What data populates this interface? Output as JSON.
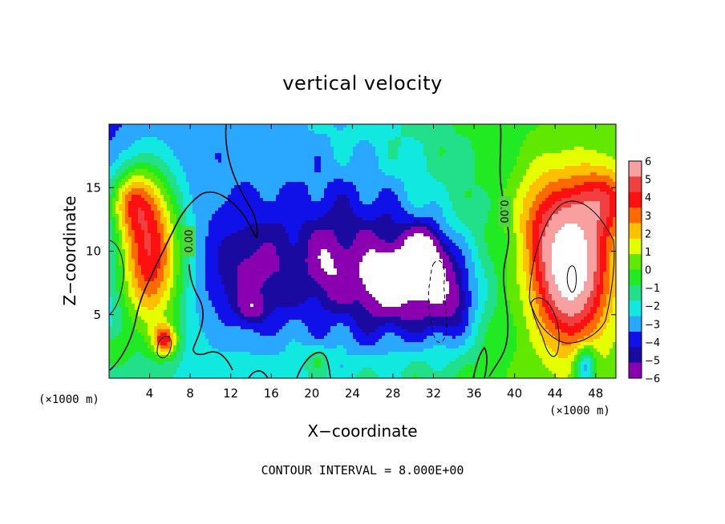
{
  "chart_data": {
    "type": "heatmap",
    "title": "vertical velocity",
    "xlabel": "X−coordinate",
    "ylabel": "Z−coordinate",
    "x_unit_left": "(×1000 m)",
    "x_unit_right": "(×1000 m)",
    "footer": "CONTOUR INTERVAL = 8.000E+00",
    "xlim": [
      0,
      50
    ],
    "ylim": [
      0,
      20
    ],
    "xticks": [
      "4",
      "8",
      "12",
      "16",
      "20",
      "24",
      "28",
      "32",
      "36",
      "40",
      "44",
      "48"
    ],
    "xtick_values": [
      4,
      8,
      12,
      16,
      20,
      24,
      28,
      32,
      36,
      40,
      44,
      48
    ],
    "yticks": [
      "5",
      "10",
      "15"
    ],
    "ytick_values": [
      5,
      10,
      15
    ],
    "colorbar": {
      "range": [
        -6,
        6
      ],
      "labels": [
        "6",
        "5",
        "4",
        "3",
        "2",
        "1",
        "0",
        "−1",
        "−2",
        "−3",
        "−4",
        "−5",
        "−6"
      ],
      "colors": [
        "#f8a0a0",
        "#f04040",
        "#ff1010",
        "#ff6a00",
        "#ffc000",
        "#e6ff00",
        "#60e800",
        "#22ea22",
        "#22e08a",
        "#10e8e0",
        "#2aa8ff",
        "#1010e8",
        "#1a0aa0",
        "#8a00b0"
      ]
    },
    "contour_labels": [
      "0.00",
      "0.00"
    ],
    "contour_interval": 8.0,
    "blobs": [
      {
        "x": 0,
        "z": 20,
        "sx": 30,
        "sz": 30,
        "a": -4.2
      },
      {
        "x": 25,
        "z": 9,
        "sx": 8.5,
        "sz": 7.5,
        "a": -3.4
      },
      {
        "x": 14,
        "z": 8,
        "sx": 4.5,
        "sz": 4.5,
        "a": -2.3
      },
      {
        "x": 30,
        "z": 7,
        "sx": 5,
        "sz": 4,
        "a": -3.2
      },
      {
        "x": 34,
        "z": 6,
        "sx": 2.5,
        "sz": 4,
        "a": -2.6
      },
      {
        "x": 21.5,
        "z": 9,
        "sx": 1.6,
        "sz": 2.5,
        "a": -1.8
      },
      {
        "x": 14,
        "z": 5.5,
        "sx": 1.2,
        "sz": 1.0,
        "a": -2.0
      },
      {
        "x": 27.5,
        "z": 8,
        "sx": 2.2,
        "sz": 1.6,
        "a": -4.5
      },
      {
        "x": 31,
        "z": 9.5,
        "sx": 1.8,
        "sz": 2.2,
        "a": -5.0
      },
      {
        "x": 4,
        "z": 10,
        "sx": 3.2,
        "sz": 6.5,
        "a": 7.5
      },
      {
        "x": 2,
        "z": 14,
        "sx": 2.2,
        "sz": 2.5,
        "a": 3.5
      },
      {
        "x": 5.5,
        "z": 3,
        "sx": 1.2,
        "sz": 1.2,
        "a": 5.0
      },
      {
        "x": 45.5,
        "z": 9,
        "sx": 3.6,
        "sz": 6.0,
        "a": 8.0
      },
      {
        "x": 49,
        "z": 14,
        "sx": 2.5,
        "sz": 2.5,
        "a": 3.0
      },
      {
        "x": 42,
        "z": 13,
        "sx": 2.5,
        "sz": 4,
        "a": 1.5
      },
      {
        "x": 0.5,
        "z": 2,
        "sx": 1.5,
        "sz": 1.5,
        "a": 2.0
      },
      {
        "x": 20.5,
        "z": 1.5,
        "sx": 1.2,
        "sz": 1.0,
        "a": 1.5
      },
      {
        "x": 47,
        "z": 1,
        "sx": 1.0,
        "sz": 1.5,
        "a": -4.0
      }
    ]
  }
}
